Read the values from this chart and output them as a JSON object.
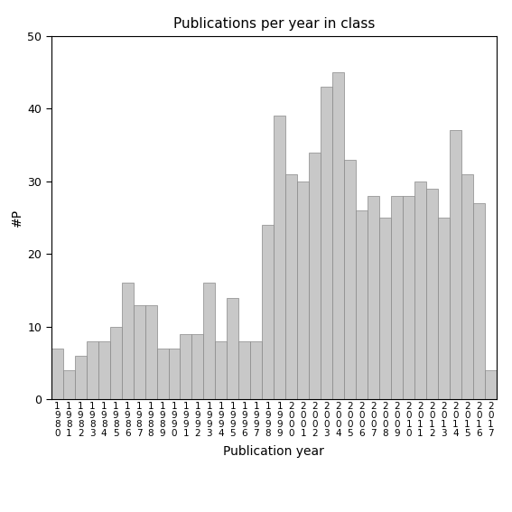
{
  "title": "Publications per year in class",
  "xlabel": "Publication year",
  "ylabel": "#P",
  "bar_color": "#c8c8c8",
  "bar_edgecolor": "#888888",
  "bar_linewidth": 0.5,
  "ylim": [
    0,
    50
  ],
  "yticks": [
    0,
    10,
    20,
    30,
    40,
    50
  ],
  "categories": [
    "1980",
    "1981",
    "1982",
    "1983",
    "1984",
    "1985",
    "1986",
    "1987",
    "1988",
    "1989",
    "1990",
    "1991",
    "1992",
    "1993",
    "1994",
    "1995",
    "1996",
    "1997",
    "1998",
    "1999",
    "2000",
    "2001",
    "2002",
    "2003",
    "2004",
    "2005",
    "2006",
    "2007",
    "2008",
    "2009",
    "2010",
    "2011",
    "2012",
    "2013",
    "2014",
    "2015",
    "2016",
    "2017"
  ],
  "values": [
    7,
    4,
    6,
    8,
    8,
    10,
    16,
    13,
    13,
    7,
    7,
    9,
    9,
    16,
    8,
    14,
    8,
    8,
    24,
    39,
    31,
    30,
    34,
    43,
    45,
    33,
    26,
    28,
    25,
    28,
    28,
    30,
    29,
    25,
    37,
    31,
    27,
    4
  ],
  "title_fontsize": 11,
  "axis_label_fontsize": 10,
  "tick_label_fontsize": 9,
  "xtick_fontsize": 7.5,
  "figsize": [
    5.67,
    5.67
  ],
  "dpi": 100
}
